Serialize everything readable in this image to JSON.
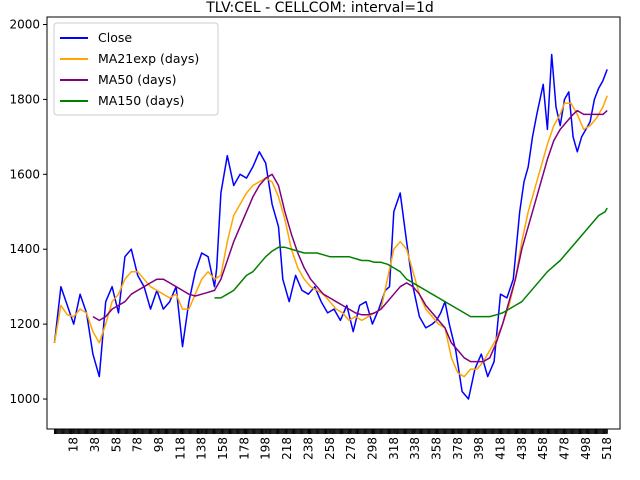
{
  "chart_data": {
    "type": "line",
    "title": "TLV:CEL - CELLCOM: interval=1d",
    "xlabel": "",
    "ylabel": "",
    "xlim": [
      -7,
      530
    ],
    "ylim": [
      920,
      2020
    ],
    "x_ticks": [
      18,
      38,
      58,
      78,
      98,
      118,
      138,
      158,
      178,
      198,
      218,
      238,
      258,
      278,
      298,
      318,
      338,
      358,
      378,
      398,
      418,
      438,
      458,
      478,
      498,
      518
    ],
    "y_ticks": [
      1000,
      1200,
      1400,
      1600,
      1800,
      2000
    ],
    "legend_position": "top-left",
    "grid": false,
    "series": [
      {
        "name": "Close",
        "color": "#0000ff",
        "x": [
          0,
          6,
          12,
          18,
          24,
          30,
          36,
          42,
          48,
          54,
          60,
          66,
          72,
          78,
          84,
          90,
          96,
          102,
          108,
          114,
          120,
          126,
          132,
          138,
          144,
          150,
          152,
          156,
          162,
          168,
          174,
          180,
          186,
          192,
          198,
          204,
          210,
          214,
          220,
          226,
          232,
          238,
          244,
          250,
          256,
          262,
          268,
          274,
          280,
          286,
          292,
          298,
          304,
          310,
          314,
          318,
          324,
          330,
          336,
          342,
          348,
          354,
          358,
          362,
          366,
          370,
          376,
          382,
          388,
          394,
          400,
          406,
          412,
          418,
          424,
          430,
          436,
          440,
          444,
          448,
          452,
          458,
          462,
          466,
          470,
          474,
          478,
          482,
          486,
          490,
          494,
          498,
          502,
          506,
          510,
          514,
          518
        ],
        "y": [
          1150,
          1300,
          1250,
          1200,
          1280,
          1230,
          1120,
          1060,
          1260,
          1300,
          1230,
          1380,
          1400,
          1330,
          1300,
          1240,
          1290,
          1240,
          1260,
          1300,
          1140,
          1260,
          1340,
          1390,
          1380,
          1300,
          1350,
          1550,
          1650,
          1570,
          1600,
          1590,
          1620,
          1660,
          1630,
          1520,
          1460,
          1320,
          1260,
          1330,
          1290,
          1280,
          1300,
          1260,
          1230,
          1240,
          1210,
          1250,
          1180,
          1250,
          1260,
          1200,
          1240,
          1290,
          1300,
          1500,
          1550,
          1420,
          1300,
          1220,
          1190,
          1200,
          1210,
          1230,
          1260,
          1200,
          1130,
          1020,
          1000,
          1080,
          1120,
          1060,
          1100,
          1280,
          1270,
          1320,
          1500,
          1580,
          1620,
          1700,
          1760,
          1840,
          1720,
          1920,
          1780,
          1730,
          1800,
          1820,
          1700,
          1660,
          1700,
          1720,
          1740,
          1800,
          1830,
          1850,
          1880
        ],
        "values": null
      },
      {
        "name": "MA21exp (days)",
        "color": "#ffa500",
        "x": [
          0,
          6,
          12,
          18,
          24,
          30,
          36,
          42,
          48,
          54,
          60,
          66,
          72,
          78,
          84,
          90,
          96,
          102,
          108,
          114,
          120,
          126,
          132,
          138,
          144,
          150,
          156,
          162,
          168,
          174,
          180,
          186,
          192,
          198,
          204,
          210,
          216,
          222,
          228,
          234,
          240,
          246,
          252,
          258,
          264,
          270,
          276,
          282,
          288,
          294,
          300,
          306,
          312,
          318,
          324,
          330,
          336,
          342,
          348,
          354,
          360,
          366,
          372,
          378,
          384,
          390,
          396,
          402,
          408,
          414,
          420,
          426,
          432,
          438,
          444,
          450,
          456,
          462,
          468,
          474,
          478,
          484,
          490,
          496,
          502,
          508,
          514,
          518
        ],
        "y": [
          1150,
          1250,
          1225,
          1220,
          1240,
          1230,
          1180,
          1150,
          1200,
          1260,
          1280,
          1320,
          1340,
          1340,
          1320,
          1300,
          1290,
          1280,
          1270,
          1280,
          1240,
          1240,
          1280,
          1320,
          1340,
          1320,
          1330,
          1420,
          1490,
          1520,
          1550,
          1570,
          1580,
          1590,
          1580,
          1540,
          1480,
          1400,
          1350,
          1320,
          1300,
          1290,
          1280,
          1260,
          1240,
          1230,
          1210,
          1220,
          1210,
          1220,
          1230,
          1240,
          1320,
          1400,
          1420,
          1400,
          1340,
          1280,
          1240,
          1220,
          1200,
          1190,
          1110,
          1070,
          1060,
          1080,
          1080,
          1100,
          1130,
          1160,
          1200,
          1250,
          1320,
          1420,
          1500,
          1560,
          1620,
          1680,
          1730,
          1760,
          1790,
          1790,
          1760,
          1720,
          1730,
          1750,
          1780,
          1810
        ],
        "values": null
      },
      {
        "name": "MA50 (days)",
        "color": "#800080",
        "x": [
          36,
          42,
          48,
          54,
          60,
          66,
          72,
          78,
          84,
          90,
          96,
          102,
          108,
          114,
          120,
          126,
          132,
          138,
          144,
          150,
          156,
          162,
          168,
          174,
          180,
          186,
          192,
          198,
          204,
          210,
          216,
          222,
          228,
          234,
          240,
          246,
          252,
          258,
          264,
          270,
          276,
          282,
          288,
          294,
          300,
          306,
          312,
          318,
          324,
          330,
          336,
          342,
          348,
          354,
          360,
          366,
          372,
          378,
          384,
          390,
          396,
          402,
          408,
          414,
          420,
          426,
          432,
          438,
          444,
          450,
          456,
          462,
          468,
          474,
          480,
          486,
          490,
          496,
          502,
          508,
          514,
          518
        ],
        "y": [
          1220,
          1210,
          1220,
          1240,
          1250,
          1260,
          1280,
          1290,
          1300,
          1310,
          1320,
          1320,
          1310,
          1300,
          1290,
          1280,
          1275,
          1280,
          1285,
          1290,
          1320,
          1370,
          1420,
          1460,
          1500,
          1540,
          1570,
          1590,
          1600,
          1570,
          1500,
          1440,
          1390,
          1350,
          1320,
          1300,
          1280,
          1270,
          1260,
          1250,
          1240,
          1230,
          1225,
          1225,
          1230,
          1240,
          1260,
          1280,
          1300,
          1310,
          1300,
          1280,
          1250,
          1230,
          1210,
          1190,
          1150,
          1130,
          1110,
          1100,
          1100,
          1100,
          1110,
          1150,
          1200,
          1260,
          1320,
          1400,
          1460,
          1520,
          1580,
          1640,
          1690,
          1720,
          1740,
          1760,
          1770,
          1760,
          1760,
          1760,
          1760,
          1770
        ],
        "values": null
      },
      {
        "name": "MA150 (days)",
        "color": "#008000",
        "x": [
          150,
          156,
          162,
          168,
          174,
          180,
          186,
          192,
          198,
          204,
          210,
          216,
          222,
          228,
          234,
          240,
          246,
          252,
          258,
          264,
          270,
          276,
          282,
          288,
          294,
          300,
          306,
          312,
          318,
          324,
          330,
          336,
          342,
          348,
          354,
          360,
          366,
          372,
          378,
          384,
          390,
          396,
          402,
          408,
          414,
          420,
          426,
          432,
          438,
          444,
          450,
          456,
          462,
          468,
          474,
          480,
          486,
          492,
          498,
          504,
          510,
          516,
          518
        ],
        "y": [
          1270,
          1270,
          1280,
          1290,
          1310,
          1330,
          1340,
          1360,
          1380,
          1395,
          1405,
          1405,
          1400,
          1395,
          1390,
          1390,
          1390,
          1385,
          1380,
          1380,
          1380,
          1380,
          1375,
          1370,
          1370,
          1365,
          1365,
          1360,
          1350,
          1340,
          1320,
          1310,
          1300,
          1290,
          1280,
          1270,
          1260,
          1250,
          1240,
          1230,
          1220,
          1220,
          1220,
          1220,
          1225,
          1230,
          1240,
          1250,
          1260,
          1280,
          1300,
          1320,
          1340,
          1355,
          1370,
          1390,
          1410,
          1430,
          1450,
          1470,
          1490,
          1500,
          1510
        ],
        "values": null
      }
    ]
  }
}
